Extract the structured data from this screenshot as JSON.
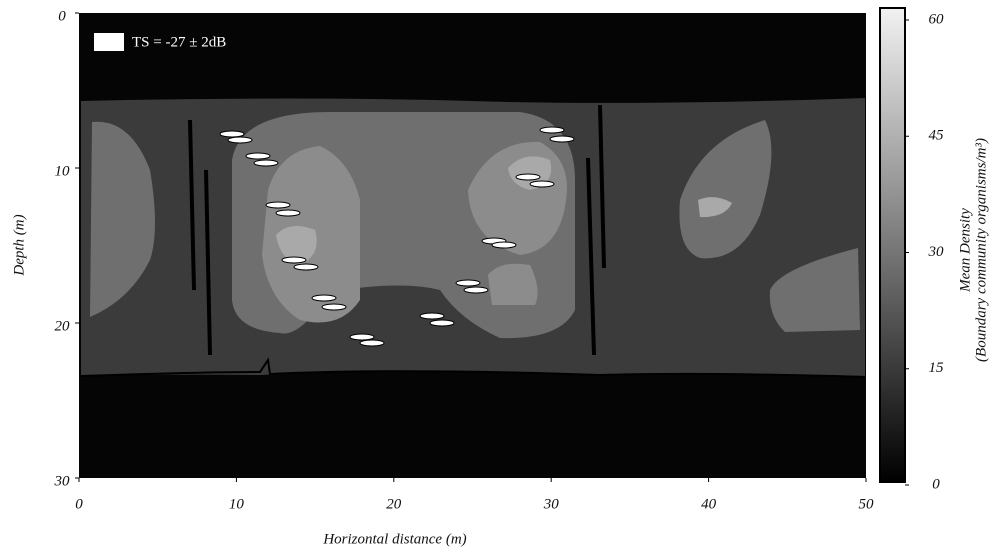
{
  "chart_data": {
    "type": "contour",
    "legend": "TS = -27 ± 2dB",
    "x_label": "Horizontal distance (m)",
    "y_label": "Depth (m)",
    "colorbar_label": "Mean Density",
    "colorbar_sublabel": "(Boundary community organisms/m³)",
    "xlim": [
      0,
      50
    ],
    "xticks": [
      0,
      10,
      20,
      30,
      40,
      50
    ],
    "ylim": [
      30,
      0
    ],
    "yticks": [
      0,
      10,
      20,
      30
    ],
    "zlim": [
      0,
      60
    ],
    "zticks": [
      0,
      15,
      30,
      45,
      60
    ]
  }
}
